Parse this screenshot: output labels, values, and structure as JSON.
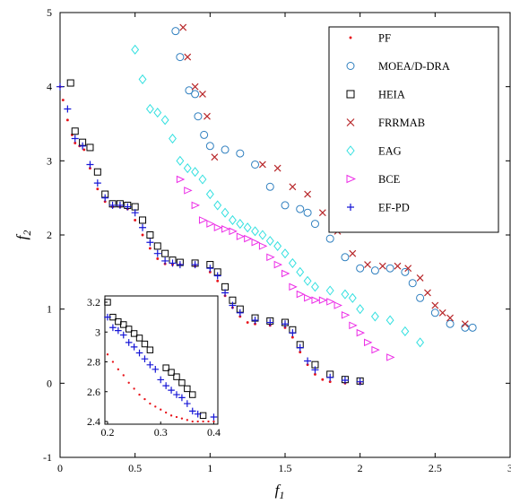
{
  "chart_data": {
    "type": "scatter",
    "title": "",
    "xlabel": "f1",
    "ylabel": "f2",
    "xlim": [
      0,
      3
    ],
    "ylim": [
      -1,
      5
    ],
    "xticks": [
      "0",
      "0.5",
      "1",
      "1.5",
      "2",
      "2.5",
      "3"
    ],
    "yticks": [
      "-1",
      "0",
      "1",
      "2",
      "3",
      "4",
      "5"
    ],
    "grid": false,
    "legend_position": "top-right",
    "series": [
      {
        "name": "PF",
        "marker": "dot",
        "color": "#e8141b",
        "points": [
          [
            0.0,
            4.0
          ],
          [
            0.02,
            3.82
          ],
          [
            0.05,
            3.55
          ],
          [
            0.08,
            3.35
          ],
          [
            0.1,
            3.24
          ],
          [
            0.13,
            3.2
          ],
          [
            0.16,
            3.15
          ],
          [
            0.2,
            2.9
          ],
          [
            0.25,
            2.62
          ],
          [
            0.3,
            2.45
          ],
          [
            0.35,
            2.38
          ],
          [
            0.4,
            2.38
          ],
          [
            0.45,
            2.35
          ],
          [
            0.5,
            2.2
          ],
          [
            0.55,
            2.0
          ],
          [
            0.6,
            1.82
          ],
          [
            0.65,
            1.68
          ],
          [
            0.7,
            1.61
          ],
          [
            0.75,
            1.6
          ],
          [
            0.8,
            1.6
          ],
          [
            0.9,
            1.58
          ],
          [
            1.0,
            1.5
          ],
          [
            1.05,
            1.38
          ],
          [
            1.1,
            1.18
          ],
          [
            1.15,
            1.02
          ],
          [
            1.2,
            0.9
          ],
          [
            1.25,
            0.82
          ],
          [
            1.3,
            0.8
          ],
          [
            1.4,
            0.78
          ],
          [
            1.5,
            0.75
          ],
          [
            1.55,
            0.62
          ],
          [
            1.6,
            0.42
          ],
          [
            1.65,
            0.25
          ],
          [
            1.7,
            0.12
          ],
          [
            1.75,
            0.05
          ],
          [
            1.8,
            0.02
          ],
          [
            1.9,
            0.0
          ],
          [
            2.0,
            0.0
          ]
        ]
      },
      {
        "name": "MOEA/D-DRA",
        "marker": "circle",
        "color": "#2f7fbf",
        "points": [
          [
            0.77,
            4.75
          ],
          [
            0.8,
            4.4
          ],
          [
            0.86,
            3.95
          ],
          [
            0.9,
            3.9
          ],
          [
            0.92,
            3.6
          ],
          [
            0.96,
            3.35
          ],
          [
            1.0,
            3.2
          ],
          [
            1.1,
            3.15
          ],
          [
            1.2,
            3.1
          ],
          [
            1.3,
            2.95
          ],
          [
            1.4,
            2.65
          ],
          [
            1.5,
            2.4
          ],
          [
            1.6,
            2.35
          ],
          [
            1.65,
            2.3
          ],
          [
            1.7,
            2.15
          ],
          [
            1.8,
            1.95
          ],
          [
            1.9,
            1.7
          ],
          [
            2.0,
            1.55
          ],
          [
            2.1,
            1.52
          ],
          [
            2.2,
            1.55
          ],
          [
            2.3,
            1.5
          ],
          [
            2.35,
            1.35
          ],
          [
            2.4,
            1.15
          ],
          [
            2.5,
            0.95
          ],
          [
            2.6,
            0.8
          ],
          [
            2.7,
            0.75
          ],
          [
            2.75,
            0.75
          ]
        ]
      },
      {
        "name": "HEIA",
        "marker": "square",
        "color": "#000000",
        "points": [
          [
            0.07,
            4.05
          ],
          [
            0.1,
            3.4
          ],
          [
            0.15,
            3.25
          ],
          [
            0.2,
            3.18
          ],
          [
            0.25,
            2.85
          ],
          [
            0.3,
            2.55
          ],
          [
            0.35,
            2.42
          ],
          [
            0.4,
            2.42
          ],
          [
            0.45,
            2.4
          ],
          [
            0.5,
            2.38
          ],
          [
            0.55,
            2.2
          ],
          [
            0.6,
            2.0
          ],
          [
            0.65,
            1.85
          ],
          [
            0.7,
            1.75
          ],
          [
            0.75,
            1.66
          ],
          [
            0.8,
            1.63
          ],
          [
            0.9,
            1.62
          ],
          [
            1.0,
            1.6
          ],
          [
            1.05,
            1.5
          ],
          [
            1.1,
            1.3
          ],
          [
            1.15,
            1.12
          ],
          [
            1.2,
            1.0
          ],
          [
            1.3,
            0.88
          ],
          [
            1.4,
            0.84
          ],
          [
            1.5,
            0.82
          ],
          [
            1.55,
            0.72
          ],
          [
            1.6,
            0.52
          ],
          [
            1.7,
            0.25
          ],
          [
            1.8,
            0.12
          ],
          [
            1.9,
            0.05
          ],
          [
            2.0,
            0.03
          ]
        ]
      },
      {
        "name": "FRRMAB",
        "marker": "x",
        "color": "#b8282b",
        "points": [
          [
            0.82,
            4.8
          ],
          [
            0.85,
            4.4
          ],
          [
            0.9,
            4.0
          ],
          [
            0.95,
            3.9
          ],
          [
            0.98,
            3.6
          ],
          [
            1.03,
            3.05
          ],
          [
            1.35,
            2.95
          ],
          [
            1.45,
            2.9
          ],
          [
            1.55,
            2.65
          ],
          [
            1.65,
            2.55
          ],
          [
            1.75,
            2.3
          ],
          [
            1.85,
            2.05
          ],
          [
            1.95,
            1.75
          ],
          [
            2.05,
            1.6
          ],
          [
            2.15,
            1.58
          ],
          [
            2.25,
            1.58
          ],
          [
            2.32,
            1.55
          ],
          [
            2.4,
            1.42
          ],
          [
            2.45,
            1.22
          ],
          [
            2.5,
            1.05
          ],
          [
            2.55,
            0.95
          ],
          [
            2.6,
            0.88
          ],
          [
            2.7,
            0.8
          ]
        ]
      },
      {
        "name": "EAG",
        "marker": "diamond",
        "color": "#33e0e0",
        "points": [
          [
            0.5,
            4.5
          ],
          [
            0.55,
            4.1
          ],
          [
            0.6,
            3.7
          ],
          [
            0.65,
            3.65
          ],
          [
            0.7,
            3.55
          ],
          [
            0.75,
            3.3
          ],
          [
            0.8,
            3.0
          ],
          [
            0.85,
            2.9
          ],
          [
            0.9,
            2.85
          ],
          [
            0.95,
            2.75
          ],
          [
            1.0,
            2.55
          ],
          [
            1.05,
            2.4
          ],
          [
            1.1,
            2.3
          ],
          [
            1.15,
            2.2
          ],
          [
            1.2,
            2.15
          ],
          [
            1.25,
            2.1
          ],
          [
            1.3,
            2.05
          ],
          [
            1.35,
            2.0
          ],
          [
            1.4,
            1.92
          ],
          [
            1.45,
            1.85
          ],
          [
            1.5,
            1.75
          ],
          [
            1.55,
            1.62
          ],
          [
            1.6,
            1.5
          ],
          [
            1.65,
            1.38
          ],
          [
            1.7,
            1.3
          ],
          [
            1.8,
            1.25
          ],
          [
            1.9,
            1.2
          ],
          [
            1.95,
            1.15
          ],
          [
            2.0,
            1.0
          ],
          [
            2.1,
            0.9
          ],
          [
            2.2,
            0.85
          ],
          [
            2.3,
            0.7
          ],
          [
            2.4,
            0.55
          ]
        ]
      },
      {
        "name": "BCE",
        "marker": "triangle",
        "color": "#ec2ce6",
        "points": [
          [
            0.8,
            2.75
          ],
          [
            0.85,
            2.6
          ],
          [
            0.9,
            2.4
          ],
          [
            0.95,
            2.2
          ],
          [
            1.0,
            2.15
          ],
          [
            1.05,
            2.1
          ],
          [
            1.1,
            2.08
          ],
          [
            1.15,
            2.05
          ],
          [
            1.2,
            1.98
          ],
          [
            1.25,
            1.95
          ],
          [
            1.3,
            1.9
          ],
          [
            1.35,
            1.85
          ],
          [
            1.4,
            1.7
          ],
          [
            1.45,
            1.6
          ],
          [
            1.5,
            1.48
          ],
          [
            1.55,
            1.3
          ],
          [
            1.6,
            1.2
          ],
          [
            1.65,
            1.15
          ],
          [
            1.7,
            1.12
          ],
          [
            1.75,
            1.12
          ],
          [
            1.8,
            1.1
          ],
          [
            1.85,
            1.05
          ],
          [
            1.9,
            0.92
          ],
          [
            1.95,
            0.78
          ],
          [
            2.0,
            0.68
          ],
          [
            2.05,
            0.55
          ],
          [
            2.1,
            0.45
          ],
          [
            2.2,
            0.35
          ]
        ]
      },
      {
        "name": "EF-PD",
        "marker": "plus",
        "color": "#1616d6",
        "points": [
          [
            0.0,
            4.0
          ],
          [
            0.05,
            3.7
          ],
          [
            0.1,
            3.3
          ],
          [
            0.15,
            3.2
          ],
          [
            0.2,
            2.95
          ],
          [
            0.25,
            2.7
          ],
          [
            0.3,
            2.5
          ],
          [
            0.35,
            2.4
          ],
          [
            0.4,
            2.4
          ],
          [
            0.45,
            2.38
          ],
          [
            0.5,
            2.3
          ],
          [
            0.55,
            2.1
          ],
          [
            0.6,
            1.9
          ],
          [
            0.65,
            1.75
          ],
          [
            0.7,
            1.65
          ],
          [
            0.75,
            1.62
          ],
          [
            0.8,
            1.6
          ],
          [
            0.9,
            1.6
          ],
          [
            1.0,
            1.55
          ],
          [
            1.05,
            1.45
          ],
          [
            1.1,
            1.22
          ],
          [
            1.15,
            1.05
          ],
          [
            1.2,
            0.95
          ],
          [
            1.3,
            0.85
          ],
          [
            1.4,
            0.82
          ],
          [
            1.5,
            0.8
          ],
          [
            1.55,
            0.68
          ],
          [
            1.6,
            0.48
          ],
          [
            1.65,
            0.3
          ],
          [
            1.7,
            0.18
          ],
          [
            1.8,
            0.08
          ],
          [
            1.9,
            0.04
          ],
          [
            2.0,
            0.02
          ]
        ]
      }
    ],
    "inset": {
      "xlim": [
        0.2,
        0.4
      ],
      "ylim": [
        2.4,
        3.2
      ],
      "xticks": [
        "0.2",
        "0.3",
        "0.4"
      ],
      "yticks": [
        "2.4",
        "2.6",
        "2.8",
        "3",
        "3.2"
      ],
      "series": [
        {
          "name": "PF",
          "points": [
            [
              0.2,
              2.85
            ],
            [
              0.21,
              2.8
            ],
            [
              0.22,
              2.75
            ],
            [
              0.23,
              2.71
            ],
            [
              0.24,
              2.66
            ],
            [
              0.25,
              2.62
            ],
            [
              0.26,
              2.58
            ],
            [
              0.27,
              2.55
            ],
            [
              0.28,
              2.52
            ],
            [
              0.29,
              2.5
            ],
            [
              0.3,
              2.48
            ],
            [
              0.31,
              2.46
            ],
            [
              0.32,
              2.44
            ],
            [
              0.33,
              2.43
            ],
            [
              0.34,
              2.42
            ],
            [
              0.35,
              2.41
            ],
            [
              0.36,
              2.4
            ],
            [
              0.37,
              2.4
            ],
            [
              0.38,
              2.4
            ],
            [
              0.39,
              2.4
            ],
            [
              0.4,
              2.4
            ]
          ]
        },
        {
          "name": "HEIA",
          "points": [
            [
              0.2,
              3.2
            ],
            [
              0.21,
              3.1
            ],
            [
              0.22,
              3.07
            ],
            [
              0.23,
              3.05
            ],
            [
              0.24,
              3.02
            ],
            [
              0.25,
              2.99
            ],
            [
              0.26,
              2.96
            ],
            [
              0.27,
              2.92
            ],
            [
              0.28,
              2.88
            ],
            [
              0.31,
              2.76
            ],
            [
              0.32,
              2.73
            ],
            [
              0.33,
              2.7
            ],
            [
              0.34,
              2.66
            ],
            [
              0.35,
              2.62
            ],
            [
              0.36,
              2.58
            ],
            [
              0.38,
              2.44
            ]
          ]
        },
        {
          "name": "EF-PD",
          "points": [
            [
              0.2,
              3.1
            ],
            [
              0.21,
              3.03
            ],
            [
              0.22,
              3.01
            ],
            [
              0.23,
              2.98
            ],
            [
              0.24,
              2.93
            ],
            [
              0.25,
              2.9
            ],
            [
              0.26,
              2.86
            ],
            [
              0.27,
              2.82
            ],
            [
              0.28,
              2.78
            ],
            [
              0.29,
              2.75
            ],
            [
              0.3,
              2.68
            ],
            [
              0.31,
              2.64
            ],
            [
              0.32,
              2.61
            ],
            [
              0.33,
              2.58
            ],
            [
              0.34,
              2.56
            ],
            [
              0.35,
              2.52
            ],
            [
              0.36,
              2.47
            ],
            [
              0.37,
              2.45
            ],
            [
              0.4,
              2.43
            ]
          ]
        }
      ]
    }
  }
}
